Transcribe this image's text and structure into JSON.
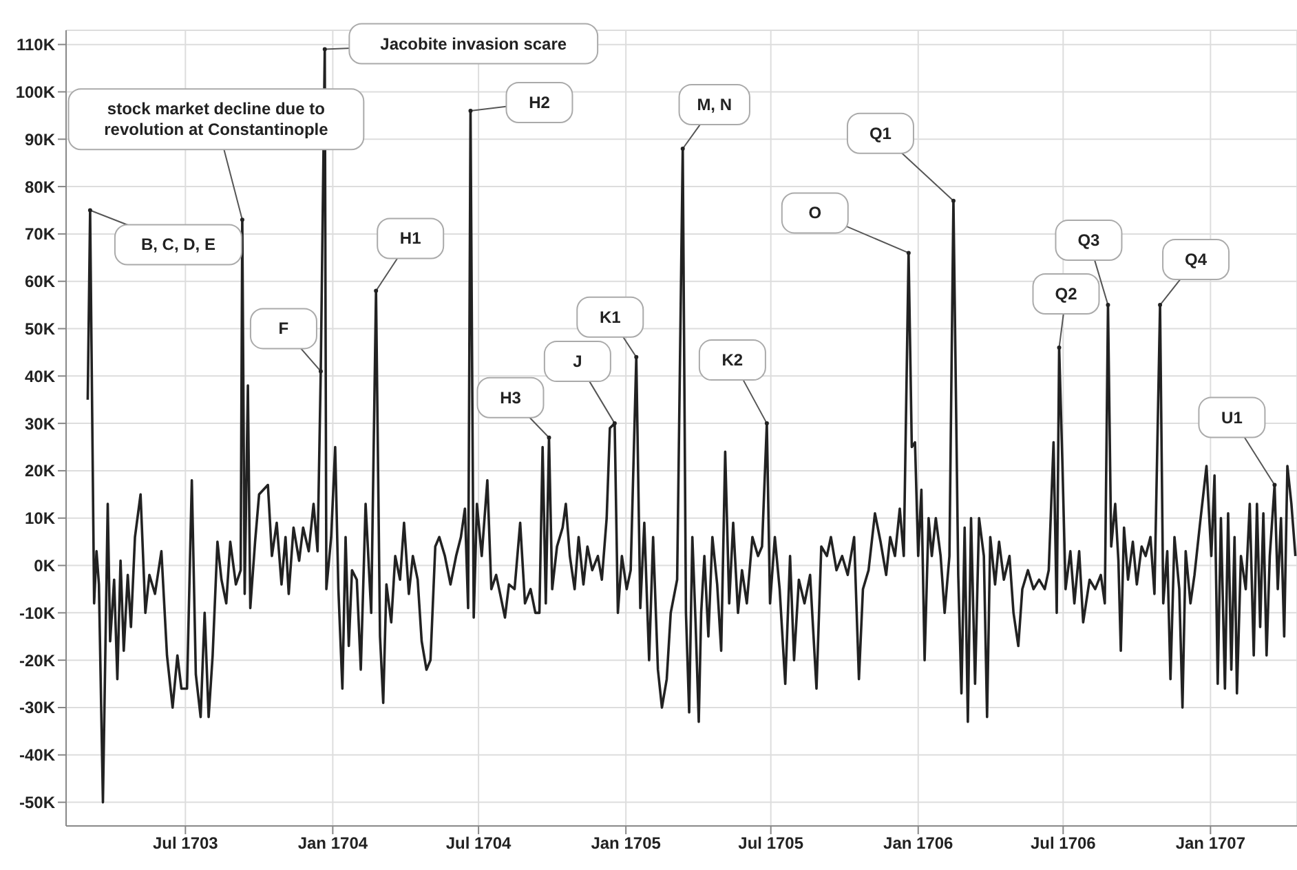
{
  "chart_data": {
    "type": "line",
    "color": "#222222",
    "grid": true,
    "marker": "none",
    "line_style": "solid",
    "xlim": [
      "1703-02-02",
      "1707-04-19"
    ],
    "xticks": [
      {
        "value": "1703-07-01",
        "label": "Jul 1703"
      },
      {
        "value": "1704-01-01",
        "label": "Jan 1704"
      },
      {
        "value": "1704-07-01",
        "label": "Jul 1704"
      },
      {
        "value": "1705-01-01",
        "label": "Jan 1705"
      },
      {
        "value": "1705-07-01",
        "label": "Jul 1705"
      },
      {
        "value": "1706-01-01",
        "label": "Jan 1706"
      },
      {
        "value": "1706-07-01",
        "label": "Jul 1706"
      },
      {
        "value": "1707-01-01",
        "label": "Jan 1707"
      }
    ],
    "ylim": [
      -55000,
      113000
    ],
    "yticks": [
      {
        "value": -50000,
        "label": "-50K"
      },
      {
        "value": -40000,
        "label": "-40K"
      },
      {
        "value": -30000,
        "label": "-30K"
      },
      {
        "value": -20000,
        "label": "-20K"
      },
      {
        "value": -10000,
        "label": "-10K"
      },
      {
        "value": 0,
        "label": "0K"
      },
      {
        "value": 10000,
        "label": "10K"
      },
      {
        "value": 20000,
        "label": "20K"
      },
      {
        "value": 30000,
        "label": "30K"
      },
      {
        "value": 40000,
        "label": "40K"
      },
      {
        "value": 50000,
        "label": "50K"
      },
      {
        "value": 60000,
        "label": "60K"
      },
      {
        "value": 70000,
        "label": "70K"
      },
      {
        "value": 80000,
        "label": "80K"
      },
      {
        "value": 90000,
        "label": "90K"
      },
      {
        "value": 100000,
        "label": "100K"
      },
      {
        "value": 110000,
        "label": "110K"
      }
    ],
    "x": [
      "1703-03-01",
      "1703-03-04",
      "1703-03-09",
      "1703-03-12",
      "1703-03-15",
      "1703-03-20",
      "1703-03-26",
      "1703-03-29",
      "1703-04-03",
      "1703-04-07",
      "1703-04-11",
      "1703-04-15",
      "1703-04-20",
      "1703-04-24",
      "1703-04-29",
      "1703-05-06",
      "1703-05-12",
      "1703-05-17",
      "1703-05-24",
      "1703-06-01",
      "1703-06-08",
      "1703-06-15",
      "1703-06-21",
      "1703-06-26",
      "1703-07-03",
      "1703-07-09",
      "1703-07-14",
      "1703-07-20",
      "1703-07-25",
      "1703-07-30",
      "1703-08-04",
      "1703-08-10",
      "1703-08-15",
      "1703-08-21",
      "1703-08-26",
      "1703-09-02",
      "1703-09-08",
      "1703-09-10",
      "1703-09-13",
      "1703-09-17",
      "1703-09-20",
      "1703-09-26",
      "1703-10-01",
      "1703-10-12",
      "1703-10-17",
      "1703-10-23",
      "1703-10-29",
      "1703-11-03",
      "1703-11-07",
      "1703-11-13",
      "1703-11-20",
      "1703-11-25",
      "1703-12-02",
      "1703-12-08",
      "1703-12-13",
      "1703-12-17",
      "1703-12-22",
      "1703-12-24",
      "1703-12-30",
      "1704-01-04",
      "1704-01-08",
      "1704-01-13",
      "1704-01-17",
      "1704-01-21",
      "1704-01-25",
      "1704-01-31",
      "1704-02-05",
      "1704-02-11",
      "1704-02-18",
      "1704-02-24",
      "1704-02-29",
      "1704-03-04",
      "1704-03-08",
      "1704-03-14",
      "1704-03-19",
      "1704-03-25",
      "1704-03-30",
      "1704-04-05",
      "1704-04-10",
      "1704-04-16",
      "1704-04-21",
      "1704-04-27",
      "1704-05-02",
      "1704-05-08",
      "1704-05-13",
      "1704-05-20",
      "1704-05-27",
      "1704-06-03",
      "1704-06-09",
      "1704-06-14",
      "1704-06-18",
      "1704-06-21",
      "1704-06-25",
      "1704-06-29",
      "1704-07-05",
      "1704-07-12",
      "1704-07-17",
      "1704-07-23",
      "1704-07-28",
      "1704-08-03",
      "1704-08-08",
      "1704-08-15",
      "1704-08-22",
      "1704-08-28",
      "1704-09-04",
      "1704-09-10",
      "1704-09-15",
      "1704-09-19",
      "1704-09-23",
      "1704-09-27",
      "1704-10-01",
      "1704-10-07",
      "1704-10-14",
      "1704-10-18",
      "1704-10-23",
      "1704-10-29",
      "1704-11-03",
      "1704-11-09",
      "1704-11-14",
      "1704-11-20",
      "1704-11-27",
      "1704-12-02",
      "1704-12-08",
      "1704-12-12",
      "1704-12-18",
      "1704-12-22",
      "1704-12-27",
      "1705-01-02",
      "1705-01-07",
      "1705-01-14",
      "1705-01-19",
      "1705-01-24",
      "1705-01-30",
      "1705-02-04",
      "1705-02-10",
      "1705-02-15",
      "1705-02-21",
      "1705-02-26",
      "1705-03-06",
      "1705-03-13",
      "1705-03-17",
      "1705-03-21",
      "1705-03-25",
      "1705-03-29",
      "1705-04-02",
      "1705-04-05",
      "1705-04-09",
      "1705-04-14",
      "1705-04-19",
      "1705-04-25",
      "1705-04-30",
      "1705-05-05",
      "1705-05-10",
      "1705-05-15",
      "1705-05-21",
      "1705-05-26",
      "1705-06-01",
      "1705-06-08",
      "1705-06-15",
      "1705-06-20",
      "1705-06-26",
      "1705-06-30",
      "1705-07-06",
      "1705-07-12",
      "1705-07-19",
      "1705-07-25",
      "1705-07-30",
      "1705-08-05",
      "1705-08-12",
      "1705-08-19",
      "1705-08-27",
      "1705-09-02",
      "1705-09-09",
      "1705-09-14",
      "1705-09-21",
      "1705-09-28",
      "1705-10-05",
      "1705-10-13",
      "1705-10-19",
      "1705-10-24",
      "1705-10-31",
      "1705-11-08",
      "1705-11-15",
      "1705-11-22",
      "1705-11-27",
      "1705-12-03",
      "1705-12-09",
      "1705-12-14",
      "1705-12-20",
      "1705-12-24",
      "1705-12-28",
      "1706-01-01",
      "1706-01-05",
      "1706-01-09",
      "1706-01-14",
      "1706-01-18",
      "1706-01-23",
      "1706-01-29",
      "1706-02-03",
      "1706-02-09",
      "1706-02-14",
      "1706-02-20",
      "1706-02-24",
      "1706-02-28",
      "1706-03-04",
      "1706-03-08",
      "1706-03-13",
      "1706-03-18",
      "1706-03-24",
      "1706-03-28",
      "1706-04-01",
      "1706-04-07",
      "1706-04-12",
      "1706-04-18",
      "1706-04-25",
      "1706-04-30",
      "1706-05-06",
      "1706-05-11",
      "1706-05-18",
      "1706-05-25",
      "1706-06-01",
      "1706-06-08",
      "1706-06-13",
      "1706-06-19",
      "1706-06-23",
      "1706-06-26",
      "1706-06-30",
      "1706-07-04",
      "1706-07-10",
      "1706-07-15",
      "1706-07-21",
      "1706-07-26",
      "1706-08-03",
      "1706-08-10",
      "1706-08-17",
      "1706-08-22",
      "1706-08-26",
      "1706-08-30",
      "1706-09-04",
      "1706-09-08",
      "1706-09-11",
      "1706-09-15",
      "1706-09-20",
      "1706-09-26",
      "1706-10-01",
      "1706-10-07",
      "1706-10-12",
      "1706-10-18",
      "1706-10-23",
      "1706-10-30",
      "1706-11-03",
      "1706-11-08",
      "1706-11-12",
      "1706-11-17",
      "1706-11-23",
      "1706-11-27",
      "1706-12-01",
      "1706-12-07",
      "1706-12-12",
      "1706-12-19",
      "1706-12-27",
      "1707-01-02",
      "1707-01-06",
      "1707-01-10",
      "1707-01-14",
      "1707-01-19",
      "1707-01-23",
      "1707-01-27",
      "1707-01-31",
      "1707-02-03",
      "1707-02-08",
      "1707-02-14",
      "1707-02-19",
      "1707-02-24",
      "1707-02-28",
      "1707-03-04",
      "1707-03-08",
      "1707-03-12",
      "1707-03-16",
      "1707-03-22",
      "1707-03-26",
      "1707-03-30",
      "1707-04-03",
      "1707-04-07",
      "1707-04-12",
      "1707-04-17"
    ],
    "values": [
      35000,
      75000,
      -8000,
      3000,
      -4000,
      -50000,
      13000,
      -16000,
      -3000,
      -24000,
      1000,
      -18000,
      -2000,
      -13000,
      6000,
      15000,
      -10000,
      -2000,
      -6000,
      3000,
      -19000,
      -30000,
      -19000,
      -26000,
      -26000,
      18000,
      -23000,
      -32000,
      -10000,
      -32000,
      -19000,
      5000,
      -3000,
      -8000,
      5000,
      -4000,
      -1000,
      73000,
      -6000,
      38000,
      -9000,
      5000,
      15000,
      17000,
      2000,
      9000,
      -4000,
      6000,
      -6000,
      8000,
      1000,
      8000,
      3000,
      13000,
      3000,
      41000,
      109000,
      -5000,
      6000,
      25000,
      -5000,
      -26000,
      6000,
      -17000,
      -1000,
      -3000,
      -22000,
      13000,
      -10000,
      58000,
      -15000,
      -29000,
      -4000,
      -12000,
      2000,
      -3000,
      9000,
      -6000,
      2000,
      -3000,
      -16000,
      -22000,
      -20000,
      4000,
      6000,
      2000,
      -4000,
      2000,
      6000,
      12000,
      -9000,
      96000,
      -11000,
      13000,
      2000,
      18000,
      -5000,
      -2000,
      -6000,
      -11000,
      -4000,
      -5000,
      9000,
      -8000,
      -5000,
      -10000,
      -10000,
      25000,
      -8000,
      27000,
      -5000,
      4000,
      8000,
      13000,
      2000,
      -5000,
      6000,
      -4000,
      4000,
      -1000,
      2000,
      -3000,
      10000,
      29000,
      30000,
      -10000,
      2000,
      -5000,
      -1000,
      44000,
      -9000,
      9000,
      -20000,
      6000,
      -22000,
      -30000,
      -24000,
      -10000,
      -3000,
      88000,
      -10000,
      -31000,
      6000,
      -12000,
      -33000,
      -10000,
      2000,
      -15000,
      6000,
      -4000,
      -18000,
      24000,
      -8000,
      9000,
      -10000,
      -1000,
      -8000,
      6000,
      2000,
      4000,
      30000,
      -8000,
      6000,
      -5000,
      -25000,
      2000,
      -20000,
      -3000,
      -8000,
      -2000,
      -26000,
      4000,
      2000,
      6000,
      -1000,
      2000,
      -2000,
      6000,
      -24000,
      -5000,
      -1000,
      11000,
      5000,
      -2000,
      6000,
      2000,
      12000,
      2000,
      66000,
      25000,
      26000,
      2000,
      16000,
      -20000,
      10000,
      2000,
      10000,
      2000,
      -10000,
      2000,
      77000,
      -2000,
      -27000,
      8000,
      -33000,
      10000,
      -25000,
      10000,
      2000,
      -32000,
      6000,
      -4000,
      5000,
      -3000,
      2000,
      -10000,
      -17000,
      -5000,
      -1000,
      -5000,
      -3000,
      -5000,
      -1000,
      26000,
      -10000,
      46000,
      22000,
      -5000,
      3000,
      -8000,
      3000,
      -12000,
      -3000,
      -5000,
      -2000,
      -8000,
      55000,
      4000,
      13000,
      1000,
      -18000,
      8000,
      -3000,
      5000,
      -4000,
      4000,
      2000,
      6000,
      -6000,
      55000,
      -8000,
      3000,
      -24000,
      6000,
      -5000,
      -30000,
      3000,
      -8000,
      -2000,
      9000,
      21000,
      2000,
      19000,
      -25000,
      10000,
      -26000,
      11000,
      -22000,
      6000,
      -27000,
      2000,
      -5000,
      13000,
      -19000,
      13000,
      -13000,
      11000,
      -19000,
      2000,
      17000,
      -5000,
      10000,
      -15000,
      21000,
      13000,
      2000
    ],
    "annotations": [
      {
        "text": "B, C, D, E",
        "x": "1703-03-04",
        "y": 75000
      },
      {
        "text": "stock market decline due to revolution at Constantinople",
        "x": "1703-09-10",
        "y": 73000
      },
      {
        "text": "Jacobite invasion scare",
        "x": "1703-12-22",
        "y": 109000
      },
      {
        "text": "F",
        "x": "1703-12-17",
        "y": 41000
      },
      {
        "text": "H1",
        "x": "1704-02-24",
        "y": 58000
      },
      {
        "text": "H2",
        "x": "1704-06-21",
        "y": 96000
      },
      {
        "text": "H3",
        "x": "1704-09-27",
        "y": 27000
      },
      {
        "text": "J",
        "x": "1704-12-18",
        "y": 30000
      },
      {
        "text": "K1",
        "x": "1705-01-14",
        "y": 44000
      },
      {
        "text": "M, N",
        "x": "1705-03-13",
        "y": 88000
      },
      {
        "text": "K2",
        "x": "1705-06-26",
        "y": 30000
      },
      {
        "text": "O",
        "x": "1705-12-20",
        "y": 66000
      },
      {
        "text": "Q1",
        "x": "1706-02-14",
        "y": 77000
      },
      {
        "text": "Q2",
        "x": "1706-06-26",
        "y": 46000
      },
      {
        "text": "Q3",
        "x": "1706-08-26",
        "y": 55000
      },
      {
        "text": "Q4",
        "x": "1706-10-30",
        "y": 55000
      },
      {
        "text": "U1",
        "x": "1707-03-22",
        "y": 17000
      }
    ]
  }
}
